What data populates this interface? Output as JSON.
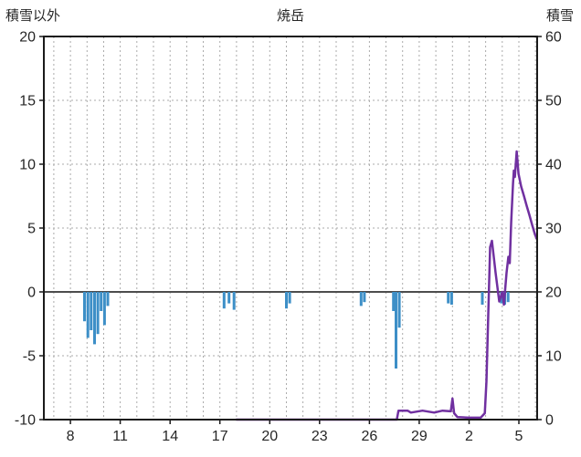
{
  "header": {
    "left_axis_label": "積雪以外",
    "title": "焼岳",
    "right_axis_label": "積雪"
  },
  "colors": {
    "bar": "#3d8fc7",
    "line": "#7030a0",
    "zero_line": "#4d4d4d",
    "frame": "#1a1a1a",
    "grid": "#ababab",
    "text": "#262626",
    "background": "#ffffff"
  },
  "chart_data": {
    "type": "bar",
    "title": "焼岳",
    "left_axis": {
      "label": "積雪以外",
      "min": -10,
      "max": 20,
      "ticks": [
        20,
        15,
        10,
        5,
        0,
        -5,
        -10
      ]
    },
    "right_axis": {
      "label": "積雪",
      "min": 0,
      "max": 60,
      "ticks": [
        60,
        50,
        40,
        30,
        20,
        10,
        0
      ]
    },
    "x_axis": {
      "min": -1.6,
      "max": 28.1,
      "minor_step": 1,
      "tick_positions": [
        0,
        3,
        6,
        9,
        12,
        15,
        18,
        21,
        24,
        27
      ],
      "tick_labels": [
        "8",
        "11",
        "14",
        "17",
        "20",
        "23",
        "26",
        "29",
        "2",
        "5"
      ]
    },
    "grid": "dashed",
    "bars": {
      "name": "積雪以外",
      "axis": "left",
      "color": "#3d8fc7",
      "points": [
        [
          0.85,
          -2.3
        ],
        [
          1.05,
          -3.6
        ],
        [
          1.25,
          -3.0
        ],
        [
          1.45,
          -4.1
        ],
        [
          1.65,
          -3.3
        ],
        [
          1.85,
          -1.5
        ],
        [
          2.05,
          -2.6
        ],
        [
          2.25,
          -1.1
        ],
        [
          9.25,
          -1.3
        ],
        [
          9.55,
          -0.9
        ],
        [
          9.85,
          -1.4
        ],
        [
          13.0,
          -1.3
        ],
        [
          13.2,
          -0.9
        ],
        [
          17.5,
          -1.1
        ],
        [
          17.7,
          -0.8
        ],
        [
          19.45,
          -1.5
        ],
        [
          19.6,
          -6.0
        ],
        [
          19.8,
          -2.8
        ],
        [
          22.75,
          -0.9
        ],
        [
          22.95,
          -1.0
        ],
        [
          24.8,
          -1.0
        ],
        [
          25.95,
          -0.9
        ],
        [
          26.15,
          -1.0
        ],
        [
          26.35,
          -0.8
        ]
      ]
    },
    "line": {
      "name": "積雪",
      "axis": "right",
      "color": "#7030a0",
      "points": [
        [
          10.0,
          0
        ],
        [
          15.0,
          0
        ],
        [
          19.65,
          0
        ],
        [
          19.75,
          1.4
        ],
        [
          20.3,
          1.4
        ],
        [
          20.5,
          1.1
        ],
        [
          21.2,
          1.4
        ],
        [
          21.9,
          1.1
        ],
        [
          22.4,
          1.4
        ],
        [
          22.9,
          1.3
        ],
        [
          23.0,
          3.3
        ],
        [
          23.1,
          1.0
        ],
        [
          23.3,
          0.4
        ],
        [
          24.0,
          0.3
        ],
        [
          24.7,
          0.3
        ],
        [
          24.95,
          1.0
        ],
        [
          25.05,
          6
        ],
        [
          25.15,
          16
        ],
        [
          25.27,
          27
        ],
        [
          25.38,
          28
        ],
        [
          25.6,
          23
        ],
        [
          25.82,
          18.5
        ],
        [
          26.0,
          20
        ],
        [
          26.1,
          18
        ],
        [
          26.26,
          23
        ],
        [
          26.37,
          25.5
        ],
        [
          26.45,
          24.5
        ],
        [
          26.54,
          31
        ],
        [
          26.65,
          37
        ],
        [
          26.7,
          39
        ],
        [
          26.76,
          38
        ],
        [
          26.87,
          42
        ],
        [
          26.98,
          38.5
        ],
        [
          27.14,
          36.5
        ],
        [
          27.31,
          35
        ],
        [
          27.47,
          33.5
        ],
        [
          27.64,
          32
        ],
        [
          27.8,
          30.5
        ],
        [
          27.97,
          29
        ],
        [
          28.08,
          28.3
        ]
      ]
    }
  }
}
